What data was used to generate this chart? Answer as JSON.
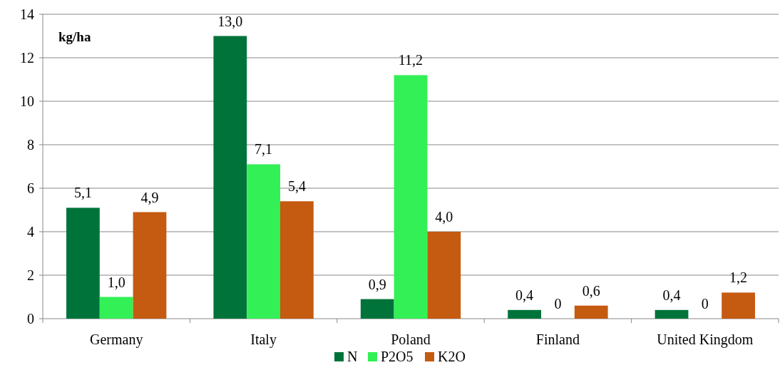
{
  "chart_data": {
    "type": "bar",
    "ylabel": "kg/ha",
    "categories": [
      "Germany",
      "Italy",
      "Poland",
      "Finland",
      "United Kingdom"
    ],
    "series": [
      {
        "name": "N",
        "color": "#00733a",
        "values": [
          5.1,
          13.0,
          0.9,
          0.4,
          0.4
        ],
        "value_labels": [
          "5,1",
          "13,0",
          "0,9",
          "0,4",
          "0,4"
        ]
      },
      {
        "name": "P2O5",
        "color": "#33f056",
        "values": [
          1.0,
          7.1,
          11.2,
          0,
          0
        ],
        "value_labels": [
          "1,0",
          "7,1",
          "11,2",
          "0",
          "0"
        ]
      },
      {
        "name": "K2O",
        "color": "#c55a11",
        "values": [
          4.9,
          5.4,
          4.0,
          0.6,
          1.2
        ],
        "value_labels": [
          "4,9",
          "5,4",
          "4,0",
          "0,6",
          "1,2"
        ]
      }
    ],
    "ylim": [
      0,
      14
    ],
    "yticks": [
      0,
      2,
      4,
      6,
      8,
      10,
      12,
      14
    ],
    "grid": "y",
    "legend": "bottom"
  }
}
